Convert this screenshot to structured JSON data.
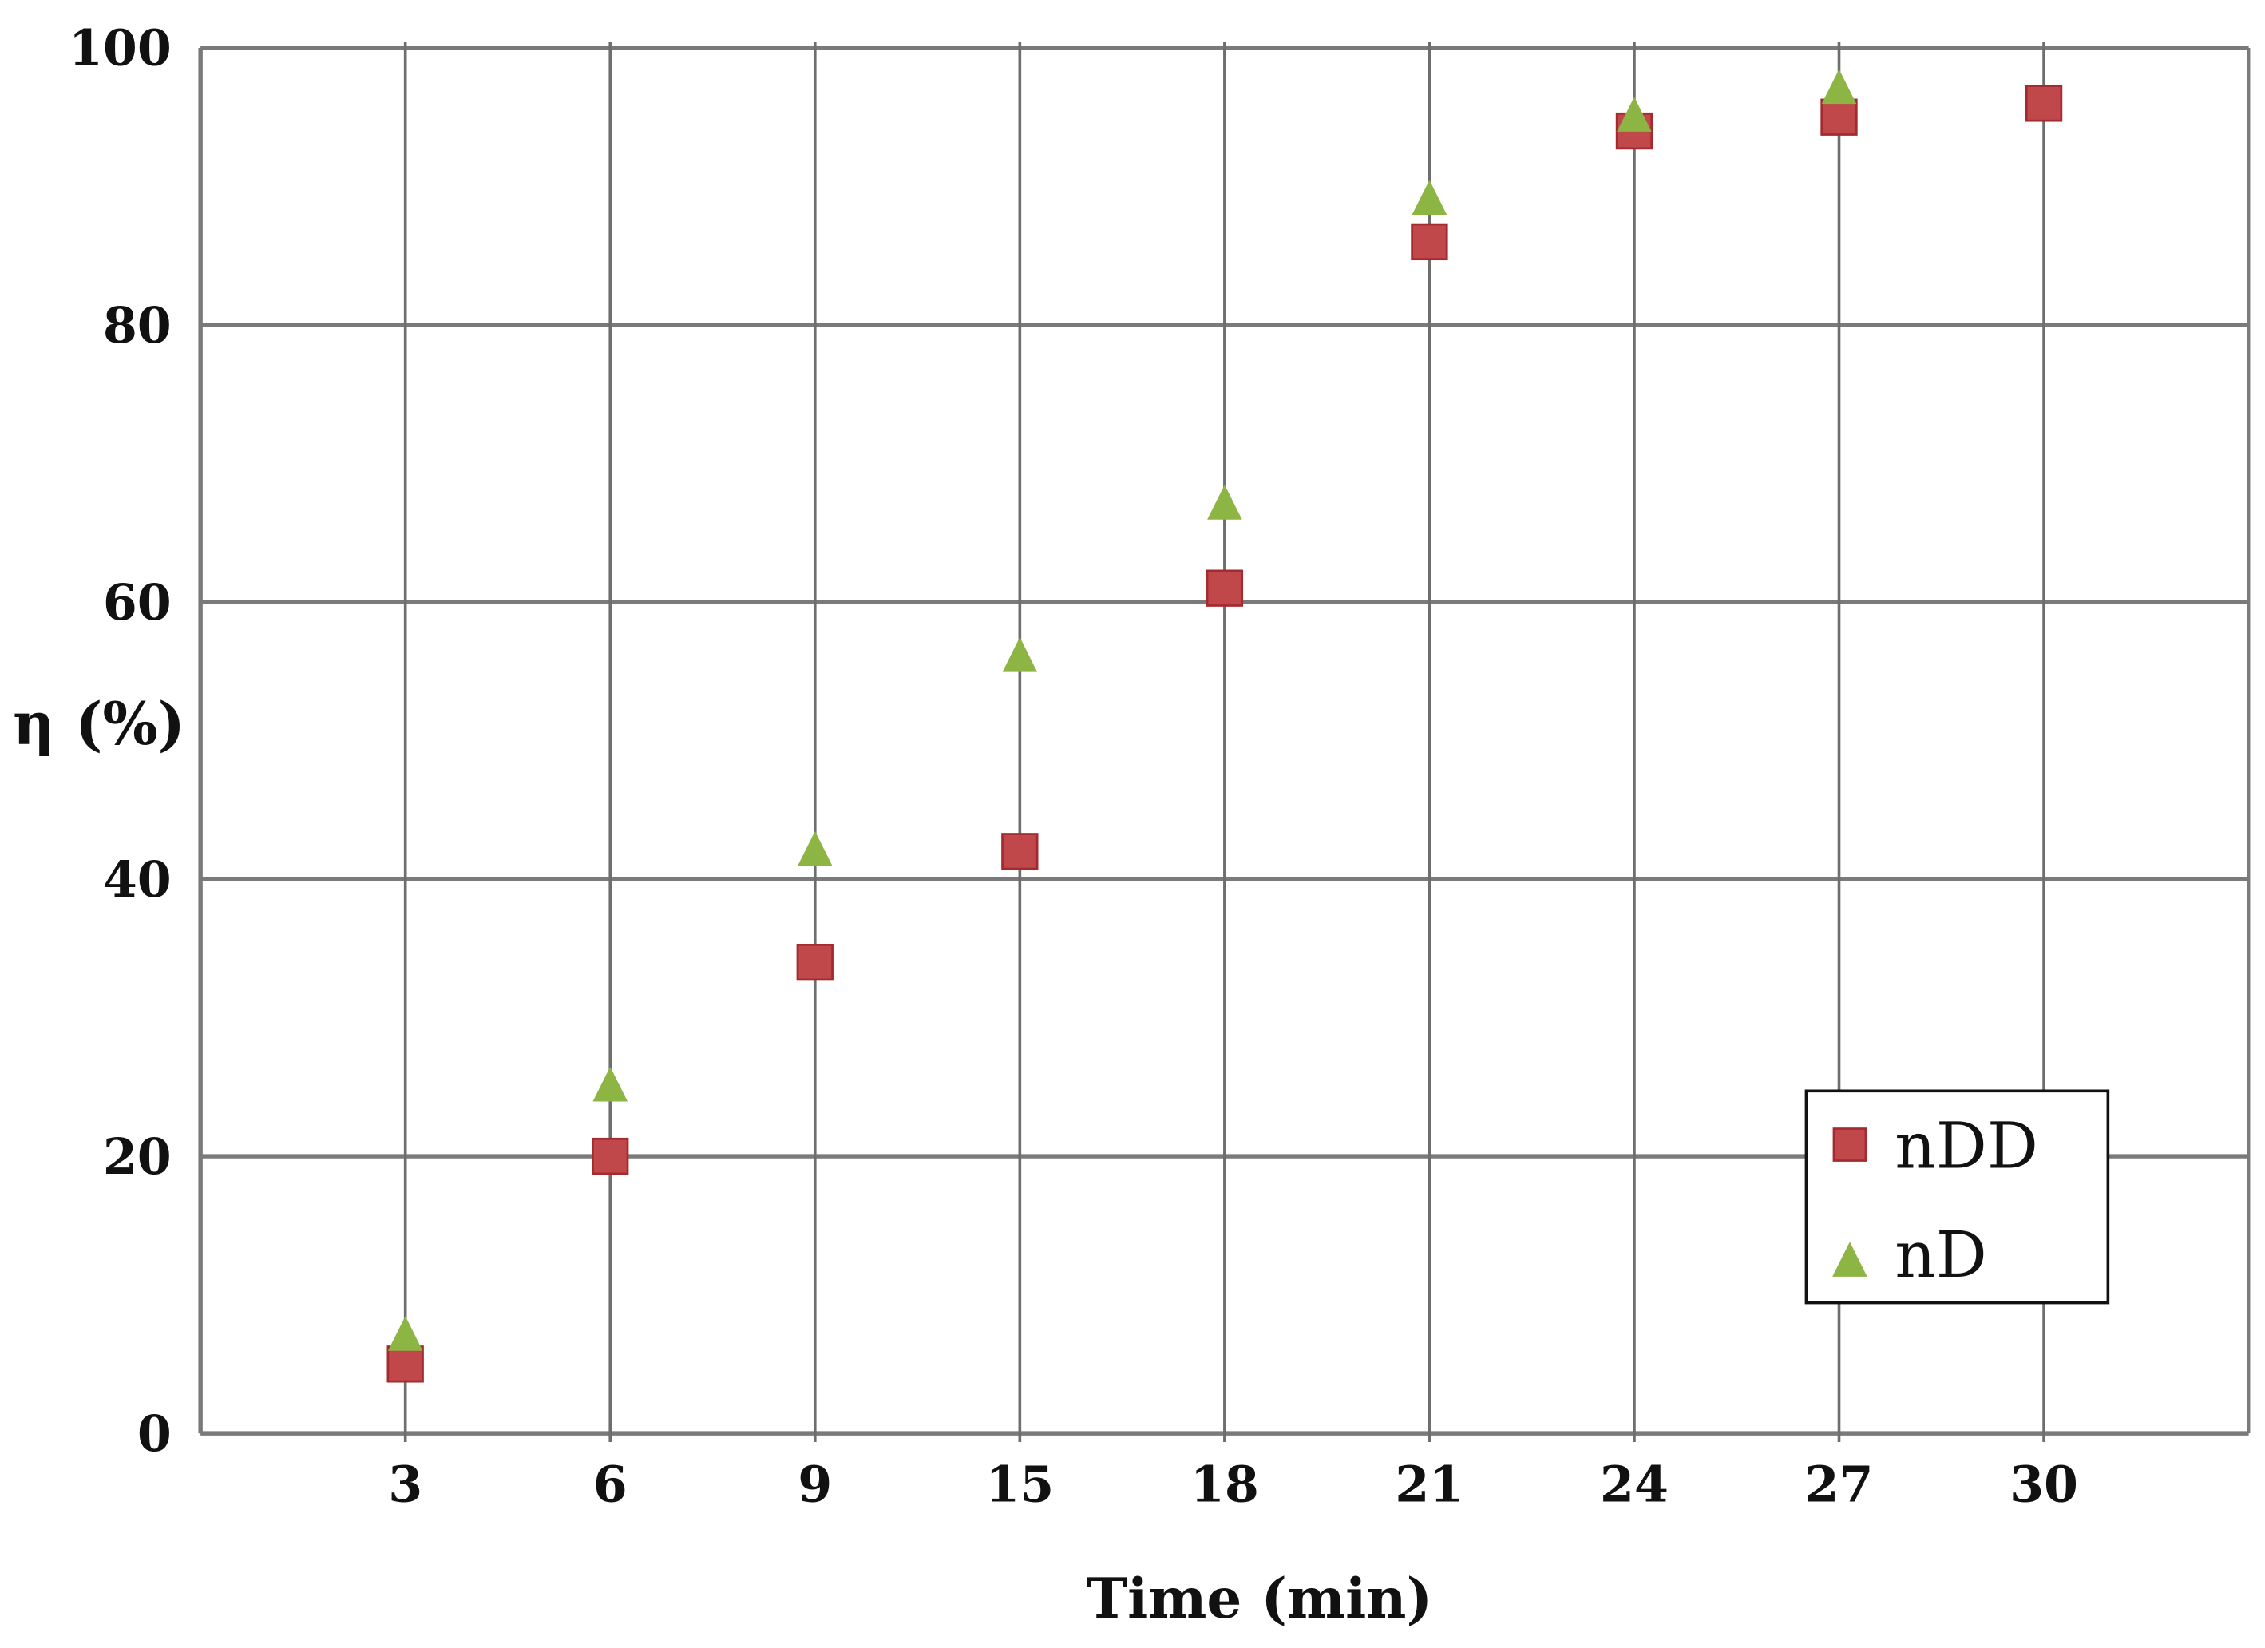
{
  "chart_data": {
    "type": "scatter",
    "title": "",
    "xlabel": "Time (min)",
    "ylabel": "η (%)",
    "x_categories": [
      "3",
      "6",
      "9",
      "15",
      "18",
      "21",
      "24",
      "27",
      "30"
    ],
    "ylim": [
      0,
      100
    ],
    "yticks": [
      "0",
      "20",
      "40",
      "60",
      "80",
      "100"
    ],
    "grid": true,
    "legend_position": "bottom-right",
    "series": [
      {
        "name": "nDD",
        "marker": "square",
        "color": "#c0474a",
        "values": [
          5,
          20,
          34,
          42,
          61,
          86,
          94,
          95,
          96
        ]
      },
      {
        "name": "nD",
        "marker": "triangle",
        "color": "#8cb544",
        "values": [
          7,
          25,
          42,
          56,
          67,
          89,
          95,
          97,
          null
        ]
      }
    ]
  }
}
